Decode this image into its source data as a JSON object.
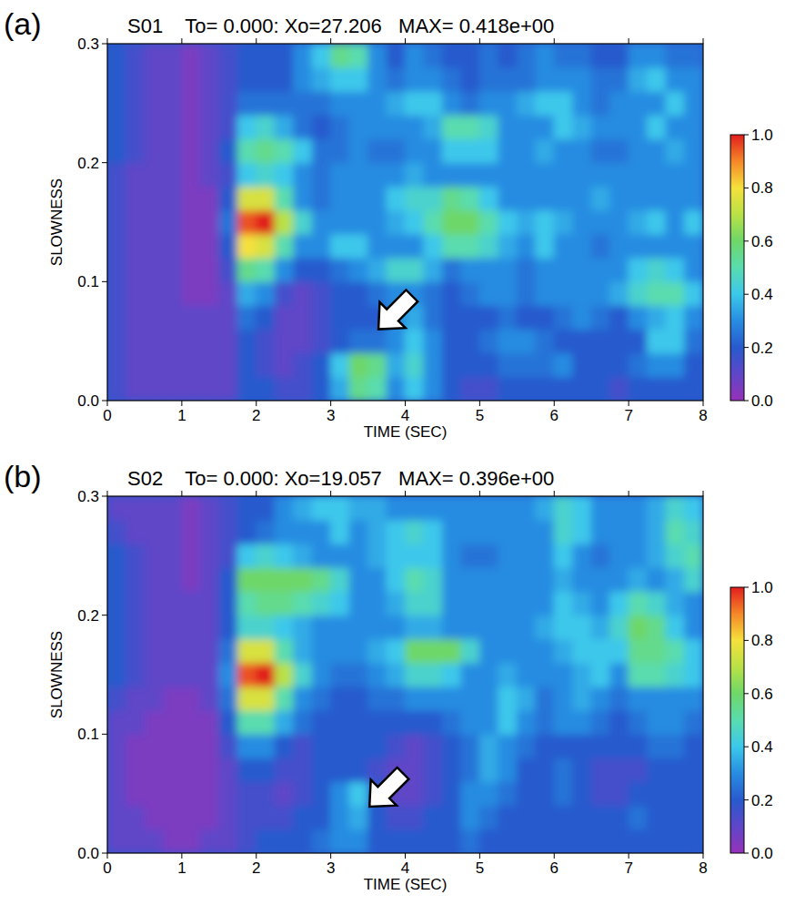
{
  "chart_data": [
    {
      "type": "heatmap",
      "panel_label": "(a)",
      "title": "S01    To= 0.000: Xo=27.206   MAX= 0.418e+00",
      "x_label": "TIME (SEC)",
      "y_label": "SLOWNESS",
      "xlim": [
        0,
        8
      ],
      "ylim": [
        0,
        0.3
      ],
      "xticks": [
        0,
        1,
        2,
        3,
        4,
        5,
        6,
        7,
        8
      ],
      "yticks": [
        {
          "value": 0,
          "label": "0.0"
        },
        0.1,
        0.2,
        0.3
      ],
      "x": [
        0.125,
        0.375,
        0.625,
        0.875,
        1.125,
        1.375,
        1.625,
        1.875,
        2.125,
        2.375,
        2.625,
        2.875,
        3.125,
        3.375,
        3.625,
        3.875,
        4.125,
        4.375,
        4.625,
        4.875,
        5.125,
        5.375,
        5.625,
        5.875,
        6.125,
        6.375,
        6.625,
        6.875,
        7.125,
        7.375,
        7.625,
        7.875
      ],
      "y": [
        0.01,
        0.03,
        0.05,
        0.07,
        0.09,
        0.11,
        0.13,
        0.15,
        0.17,
        0.19,
        0.21,
        0.23,
        0.25,
        0.27,
        0.29
      ],
      "z": [
        [
          0.15,
          0.1,
          0.1,
          0.1,
          0.1,
          0.1,
          0.1,
          0.2,
          0.2,
          0.15,
          0.15,
          0.2,
          0.35,
          0.55,
          0.5,
          0.3,
          0.4,
          0.3,
          0.2,
          0.15,
          0.15,
          0.2,
          0.2,
          0.2,
          0.2,
          0.2,
          0.2,
          0.15,
          0.2,
          0.2,
          0.2,
          0.2
        ],
        [
          0.15,
          0.1,
          0.1,
          0.1,
          0.1,
          0.1,
          0.1,
          0.2,
          0.15,
          0.1,
          0.15,
          0.2,
          0.4,
          0.6,
          0.55,
          0.35,
          0.45,
          0.3,
          0.2,
          0.2,
          0.2,
          0.25,
          0.25,
          0.25,
          0.3,
          0.2,
          0.2,
          0.2,
          0.25,
          0.3,
          0.3,
          0.2
        ],
        [
          0.15,
          0.1,
          0.1,
          0.1,
          0.1,
          0.1,
          0.1,
          0.2,
          0.15,
          0.1,
          0.1,
          0.15,
          0.2,
          0.25,
          0.25,
          0.3,
          0.4,
          0.3,
          0.2,
          0.2,
          0.25,
          0.3,
          0.3,
          0.25,
          0.2,
          0.2,
          0.2,
          0.2,
          0.2,
          0.4,
          0.4,
          0.25
        ],
        [
          0.15,
          0.1,
          0.1,
          0.1,
          0.1,
          0.1,
          0.1,
          0.25,
          0.2,
          0.1,
          0.1,
          0.15,
          0.2,
          0.2,
          0.2,
          0.3,
          0.35,
          0.25,
          0.2,
          0.2,
          0.2,
          0.25,
          0.2,
          0.2,
          0.25,
          0.3,
          0.25,
          0.2,
          0.3,
          0.35,
          0.4,
          0.3
        ],
        [
          0.15,
          0.1,
          0.1,
          0.1,
          0.05,
          0.05,
          0.1,
          0.35,
          0.3,
          0.15,
          0.1,
          0.15,
          0.2,
          0.2,
          0.25,
          0.3,
          0.3,
          0.25,
          0.2,
          0.25,
          0.3,
          0.3,
          0.25,
          0.3,
          0.3,
          0.3,
          0.3,
          0.35,
          0.45,
          0.5,
          0.5,
          0.4
        ],
        [
          0.15,
          0.1,
          0.1,
          0.1,
          0.05,
          0.05,
          0.15,
          0.55,
          0.5,
          0.3,
          0.2,
          0.2,
          0.25,
          0.3,
          0.35,
          0.45,
          0.45,
          0.35,
          0.25,
          0.3,
          0.3,
          0.3,
          0.25,
          0.3,
          0.3,
          0.3,
          0.3,
          0.3,
          0.4,
          0.45,
          0.4,
          0.3
        ],
        [
          0.15,
          0.1,
          0.1,
          0.1,
          0.05,
          0.05,
          0.2,
          0.8,
          0.75,
          0.5,
          0.3,
          0.3,
          0.4,
          0.4,
          0.3,
          0.3,
          0.3,
          0.4,
          0.5,
          0.5,
          0.45,
          0.35,
          0.3,
          0.4,
          0.3,
          0.3,
          0.25,
          0.3,
          0.3,
          0.3,
          0.3,
          0.3
        ],
        [
          0.15,
          0.1,
          0.1,
          0.1,
          0.05,
          0.05,
          0.25,
          0.95,
          1.0,
          0.7,
          0.45,
          0.3,
          0.3,
          0.3,
          0.3,
          0.35,
          0.4,
          0.5,
          0.6,
          0.6,
          0.5,
          0.4,
          0.35,
          0.4,
          0.35,
          0.3,
          0.3,
          0.3,
          0.35,
          0.4,
          0.3,
          0.4
        ],
        [
          0.15,
          0.1,
          0.1,
          0.1,
          0.05,
          0.05,
          0.2,
          0.75,
          0.75,
          0.5,
          0.3,
          0.25,
          0.3,
          0.3,
          0.3,
          0.4,
          0.45,
          0.45,
          0.55,
          0.5,
          0.4,
          0.3,
          0.3,
          0.3,
          0.3,
          0.3,
          0.35,
          0.3,
          0.3,
          0.3,
          0.3,
          0.3
        ],
        [
          0.15,
          0.1,
          0.1,
          0.1,
          0.05,
          0.1,
          0.15,
          0.4,
          0.45,
          0.4,
          0.3,
          0.25,
          0.3,
          0.3,
          0.3,
          0.3,
          0.35,
          0.3,
          0.3,
          0.3,
          0.3,
          0.3,
          0.3,
          0.3,
          0.3,
          0.3,
          0.3,
          0.3,
          0.3,
          0.3,
          0.3,
          0.3
        ],
        [
          0.2,
          0.15,
          0.1,
          0.1,
          0.05,
          0.1,
          0.2,
          0.5,
          0.55,
          0.5,
          0.4,
          0.25,
          0.25,
          0.3,
          0.25,
          0.25,
          0.3,
          0.3,
          0.4,
          0.4,
          0.4,
          0.3,
          0.3,
          0.35,
          0.3,
          0.3,
          0.25,
          0.25,
          0.3,
          0.3,
          0.35,
          0.3
        ],
        [
          0.2,
          0.15,
          0.1,
          0.1,
          0.05,
          0.1,
          0.15,
          0.4,
          0.45,
          0.35,
          0.25,
          0.2,
          0.25,
          0.3,
          0.3,
          0.3,
          0.3,
          0.35,
          0.5,
          0.5,
          0.45,
          0.3,
          0.3,
          0.3,
          0.4,
          0.35,
          0.3,
          0.3,
          0.3,
          0.4,
          0.3,
          0.3
        ],
        [
          0.2,
          0.15,
          0.1,
          0.1,
          0.05,
          0.1,
          0.15,
          0.25,
          0.25,
          0.25,
          0.25,
          0.25,
          0.3,
          0.3,
          0.3,
          0.35,
          0.4,
          0.4,
          0.3,
          0.25,
          0.3,
          0.3,
          0.35,
          0.4,
          0.4,
          0.3,
          0.25,
          0.3,
          0.3,
          0.3,
          0.4,
          0.3
        ],
        [
          0.2,
          0.15,
          0.1,
          0.1,
          0.05,
          0.1,
          0.15,
          0.2,
          0.2,
          0.2,
          0.3,
          0.35,
          0.4,
          0.4,
          0.3,
          0.25,
          0.3,
          0.3,
          0.25,
          0.2,
          0.25,
          0.25,
          0.25,
          0.3,
          0.3,
          0.3,
          0.25,
          0.25,
          0.35,
          0.4,
          0.3,
          0.3
        ],
        [
          0.2,
          0.15,
          0.1,
          0.1,
          0.05,
          0.1,
          0.15,
          0.2,
          0.2,
          0.2,
          0.3,
          0.4,
          0.55,
          0.5,
          0.3,
          0.2,
          0.3,
          0.25,
          0.2,
          0.2,
          0.25,
          0.2,
          0.25,
          0.3,
          0.25,
          0.25,
          0.2,
          0.2,
          0.3,
          0.3,
          0.25,
          0.25
        ]
      ],
      "colorbar": {
        "range": [
          0,
          1
        ],
        "ticks": [
          {
            "value": 0,
            "label": "0.0"
          },
          0.2,
          0.4,
          0.6,
          0.8,
          {
            "value": 1,
            "label": "1.0"
          }
        ]
      }
    },
    {
      "type": "heatmap",
      "panel_label": "(b)",
      "title": "S02    To= 0.000: Xo=19.057   MAX= 0.396e+00",
      "x_label": "TIME (SEC)",
      "y_label": "SLOWNESS",
      "xlim": [
        0,
        8
      ],
      "ylim": [
        0,
        0.3
      ],
      "xticks": [
        0,
        1,
        2,
        3,
        4,
        5,
        6,
        7,
        8
      ],
      "yticks": [
        {
          "value": 0,
          "label": "0.0"
        },
        0.1,
        0.2,
        0.3
      ],
      "x": [
        0.125,
        0.375,
        0.625,
        0.875,
        1.125,
        1.375,
        1.625,
        1.875,
        2.125,
        2.375,
        2.625,
        2.875,
        3.125,
        3.375,
        3.625,
        3.875,
        4.125,
        4.375,
        4.625,
        4.875,
        5.125,
        5.375,
        5.625,
        5.875,
        6.125,
        6.375,
        6.625,
        6.875,
        7.125,
        7.375,
        7.625,
        7.875
      ],
      "y": [
        0.01,
        0.03,
        0.05,
        0.07,
        0.09,
        0.11,
        0.13,
        0.15,
        0.17,
        0.19,
        0.21,
        0.23,
        0.25,
        0.27,
        0.29
      ],
      "z": [
        [
          0.1,
          0.1,
          0.1,
          0.05,
          0.05,
          0.1,
          0.1,
          0.15,
          0.2,
          0.2,
          0.2,
          0.25,
          0.3,
          0.3,
          0.2,
          0.2,
          0.2,
          0.2,
          0.2,
          0.25,
          0.2,
          0.2,
          0.2,
          0.2,
          0.2,
          0.2,
          0.2,
          0.2,
          0.2,
          0.2,
          0.2,
          0.2
        ],
        [
          0.1,
          0.1,
          0.05,
          0.05,
          0.05,
          0.05,
          0.1,
          0.15,
          0.15,
          0.15,
          0.2,
          0.2,
          0.3,
          0.35,
          0.2,
          0.15,
          0.15,
          0.2,
          0.2,
          0.3,
          0.25,
          0.2,
          0.2,
          0.2,
          0.2,
          0.2,
          0.2,
          0.2,
          0.25,
          0.2,
          0.2,
          0.2
        ],
        [
          0.1,
          0.05,
          0.05,
          0.05,
          0.05,
          0.05,
          0.1,
          0.15,
          0.15,
          0.1,
          0.15,
          0.2,
          0.3,
          0.4,
          0.2,
          0.1,
          0.1,
          0.15,
          0.2,
          0.3,
          0.3,
          0.25,
          0.2,
          0.2,
          0.25,
          0.2,
          0.15,
          0.15,
          0.2,
          0.2,
          0.2,
          0.2
        ],
        [
          0.1,
          0.05,
          0.05,
          0.05,
          0.05,
          0.05,
          0.1,
          0.2,
          0.2,
          0.15,
          0.15,
          0.2,
          0.2,
          0.2,
          0.15,
          0.1,
          0.1,
          0.15,
          0.2,
          0.25,
          0.35,
          0.3,
          0.2,
          0.2,
          0.25,
          0.2,
          0.15,
          0.15,
          0.15,
          0.2,
          0.2,
          0.2
        ],
        [
          0.1,
          0.05,
          0.05,
          0.05,
          0.05,
          0.05,
          0.15,
          0.3,
          0.3,
          0.2,
          0.15,
          0.2,
          0.2,
          0.2,
          0.2,
          0.15,
          0.1,
          0.15,
          0.2,
          0.25,
          0.35,
          0.3,
          0.25,
          0.2,
          0.2,
          0.2,
          0.2,
          0.2,
          0.2,
          0.25,
          0.25,
          0.2
        ],
        [
          0.1,
          0.1,
          0.05,
          0.05,
          0.05,
          0.05,
          0.2,
          0.5,
          0.5,
          0.35,
          0.25,
          0.2,
          0.2,
          0.2,
          0.2,
          0.2,
          0.2,
          0.2,
          0.25,
          0.3,
          0.3,
          0.4,
          0.3,
          0.25,
          0.3,
          0.3,
          0.25,
          0.2,
          0.25,
          0.3,
          0.3,
          0.25
        ],
        [
          0.15,
          0.1,
          0.1,
          0.05,
          0.05,
          0.1,
          0.25,
          0.75,
          0.75,
          0.5,
          0.3,
          0.25,
          0.2,
          0.2,
          0.25,
          0.25,
          0.3,
          0.3,
          0.3,
          0.3,
          0.3,
          0.4,
          0.35,
          0.25,
          0.3,
          0.35,
          0.3,
          0.25,
          0.3,
          0.3,
          0.3,
          0.3
        ],
        [
          0.2,
          0.15,
          0.1,
          0.1,
          0.1,
          0.1,
          0.3,
          0.95,
          1.0,
          0.7,
          0.45,
          0.3,
          0.25,
          0.25,
          0.3,
          0.35,
          0.45,
          0.45,
          0.4,
          0.3,
          0.3,
          0.35,
          0.3,
          0.3,
          0.3,
          0.35,
          0.4,
          0.3,
          0.5,
          0.5,
          0.45,
          0.4
        ],
        [
          0.2,
          0.15,
          0.1,
          0.1,
          0.1,
          0.1,
          0.25,
          0.75,
          0.75,
          0.5,
          0.35,
          0.3,
          0.3,
          0.3,
          0.35,
          0.4,
          0.6,
          0.6,
          0.6,
          0.45,
          0.3,
          0.3,
          0.3,
          0.3,
          0.35,
          0.4,
          0.4,
          0.4,
          0.55,
          0.55,
          0.5,
          0.4
        ],
        [
          0.2,
          0.15,
          0.1,
          0.1,
          0.1,
          0.1,
          0.2,
          0.45,
          0.45,
          0.4,
          0.35,
          0.3,
          0.3,
          0.3,
          0.3,
          0.3,
          0.35,
          0.35,
          0.3,
          0.3,
          0.3,
          0.3,
          0.3,
          0.35,
          0.4,
          0.4,
          0.35,
          0.45,
          0.6,
          0.55,
          0.4,
          0.3
        ],
        [
          0.2,
          0.15,
          0.1,
          0.1,
          0.1,
          0.1,
          0.2,
          0.5,
          0.55,
          0.55,
          0.5,
          0.45,
          0.4,
          0.3,
          0.3,
          0.35,
          0.45,
          0.45,
          0.3,
          0.3,
          0.3,
          0.3,
          0.3,
          0.3,
          0.4,
          0.35,
          0.3,
          0.4,
          0.5,
          0.45,
          0.35,
          0.3
        ],
        [
          0.2,
          0.15,
          0.1,
          0.1,
          0.05,
          0.1,
          0.2,
          0.6,
          0.6,
          0.6,
          0.6,
          0.55,
          0.45,
          0.3,
          0.3,
          0.4,
          0.5,
          0.45,
          0.3,
          0.3,
          0.3,
          0.3,
          0.3,
          0.3,
          0.35,
          0.3,
          0.3,
          0.3,
          0.35,
          0.3,
          0.35,
          0.45
        ],
        [
          0.2,
          0.15,
          0.1,
          0.1,
          0.05,
          0.1,
          0.15,
          0.4,
          0.45,
          0.4,
          0.35,
          0.3,
          0.3,
          0.3,
          0.35,
          0.4,
          0.4,
          0.4,
          0.3,
          0.25,
          0.25,
          0.3,
          0.3,
          0.3,
          0.4,
          0.3,
          0.25,
          0.3,
          0.3,
          0.35,
          0.45,
          0.5
        ],
        [
          0.15,
          0.1,
          0.1,
          0.1,
          0.05,
          0.1,
          0.15,
          0.2,
          0.25,
          0.3,
          0.3,
          0.3,
          0.4,
          0.3,
          0.35,
          0.4,
          0.45,
          0.4,
          0.3,
          0.3,
          0.3,
          0.3,
          0.3,
          0.3,
          0.45,
          0.4,
          0.3,
          0.3,
          0.3,
          0.35,
          0.5,
          0.45
        ],
        [
          0.1,
          0.1,
          0.1,
          0.1,
          0.05,
          0.1,
          0.15,
          0.2,
          0.2,
          0.3,
          0.35,
          0.4,
          0.4,
          0.35,
          0.35,
          0.3,
          0.3,
          0.3,
          0.3,
          0.3,
          0.3,
          0.3,
          0.3,
          0.35,
          0.45,
          0.4,
          0.3,
          0.3,
          0.3,
          0.35,
          0.45,
          0.4
        ]
      ],
      "colorbar": {
        "range": [
          0,
          1
        ],
        "ticks": [
          {
            "value": 0,
            "label": "0.0"
          },
          0.2,
          0.4,
          0.6,
          0.8,
          {
            "value": 1,
            "label": "1.0"
          }
        ]
      }
    }
  ]
}
